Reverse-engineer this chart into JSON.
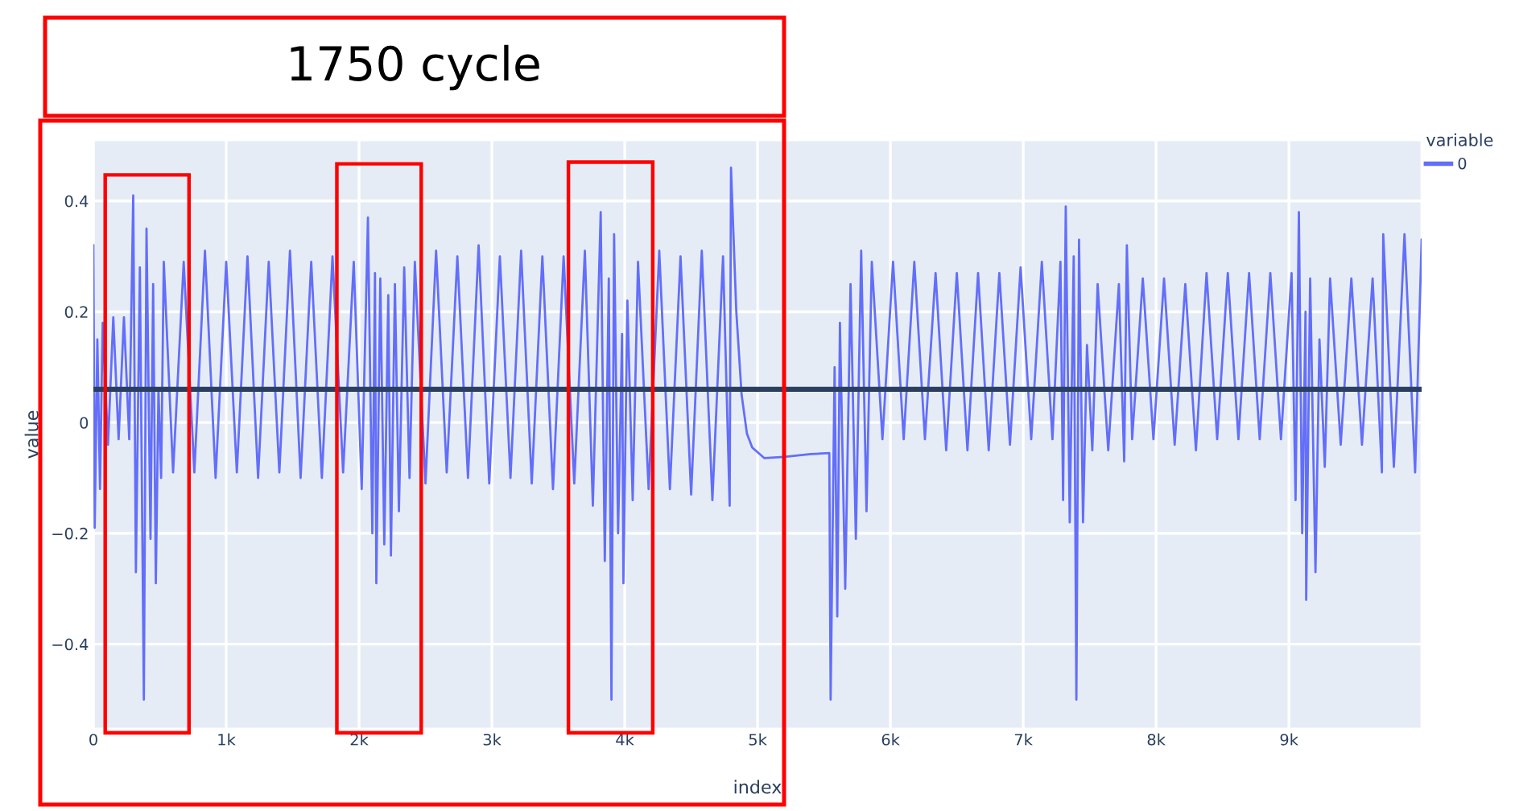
{
  "chart_data": {
    "type": "line",
    "xlabel": "index",
    "ylabel": "value",
    "legend_title": "variable",
    "legend": "top right",
    "grid": true,
    "annotations": [
      "1750 cycle"
    ],
    "xlim": [
      0,
      9999
    ],
    "ylim": [
      -0.553,
      0.51
    ],
    "xticks": [
      0,
      {
        "value": 1000,
        "label": "1k"
      },
      {
        "value": 2000,
        "label": "2k"
      },
      {
        "value": 3000,
        "label": "3k"
      },
      {
        "value": 4000,
        "label": "4k"
      },
      {
        "value": 5000,
        "label": "5k"
      },
      {
        "value": 6000,
        "label": "6k"
      },
      {
        "value": 7000,
        "label": "7k"
      },
      {
        "value": 8000,
        "label": "8k"
      },
      {
        "value": 9000,
        "label": "9k"
      }
    ],
    "yticks": [
      {
        "value": -0.4,
        "label": "−0.4"
      },
      {
        "value": -0.2,
        "label": "−0.2"
      },
      0,
      0.2,
      0.4
    ],
    "ref_lines": [
      {
        "axis": "y",
        "value": 0.06,
        "color": "#2a3f5f"
      }
    ],
    "series": [
      {
        "name": "0",
        "color": "#636efa",
        "x": [
          0,
          10,
          30,
          50,
          70,
          110,
          150,
          190,
          230,
          270,
          300,
          320,
          350,
          380,
          400,
          430,
          450,
          470,
          490,
          510,
          530,
          600,
          680,
          760,
          840,
          920,
          1000,
          1080,
          1160,
          1240,
          1320,
          1400,
          1480,
          1560,
          1640,
          1720,
          1800,
          1880,
          1960,
          2020,
          2067,
          2100,
          2120,
          2130,
          2160,
          2190,
          2220,
          2240,
          2270,
          2300,
          2340,
          2380,
          2420,
          2500,
          2580,
          2660,
          2740,
          2820,
          2900,
          2980,
          3060,
          3140,
          3220,
          3300,
          3380,
          3460,
          3540,
          3620,
          3700,
          3760,
          3819,
          3850,
          3880,
          3900,
          3920,
          3950,
          3980,
          3990,
          4020,
          4060,
          4100,
          4180,
          4260,
          4340,
          4420,
          4500,
          4580,
          4660,
          4740,
          4790,
          4800,
          4840,
          4880,
          4920,
          4960,
          5050,
          5200,
          5400,
          5540,
          5550,
          5580,
          5600,
          5620,
          5660,
          5700,
          5740,
          5780,
          5820,
          5860,
          5940,
          6020,
          6100,
          6180,
          6260,
          6340,
          6420,
          6500,
          6580,
          6660,
          6740,
          6820,
          6900,
          6980,
          7060,
          7140,
          7220,
          7280,
          7300,
          7320,
          7350,
          7380,
          7400,
          7420,
          7450,
          7480,
          7520,
          7560,
          7640,
          7720,
          7760,
          7780,
          7820,
          7900,
          7980,
          8060,
          8140,
          8220,
          8300,
          8380,
          8460,
          8540,
          8620,
          8700,
          8780,
          8860,
          8940,
          9020,
          9050,
          9075,
          9100,
          9125,
          9130,
          9160,
          9200,
          9230,
          9270,
          9310,
          9390,
          9470,
          9550,
          9630,
          9700,
          9710,
          9790,
          9870,
          9950,
          9999
        ],
        "values": [
          0.32,
          -0.19,
          0.15,
          -0.12,
          0.18,
          -0.04,
          0.19,
          -0.03,
          0.19,
          -0.03,
          0.41,
          -0.27,
          0.28,
          -0.5,
          0.35,
          -0.21,
          0.25,
          -0.29,
          0.06,
          -0.1,
          0.29,
          -0.09,
          0.29,
          -0.09,
          0.31,
          -0.1,
          0.29,
          -0.09,
          0.3,
          -0.1,
          0.29,
          -0.09,
          0.31,
          -0.1,
          0.29,
          -0.1,
          0.3,
          -0.09,
          0.29,
          -0.12,
          0.37,
          -0.2,
          0.27,
          -0.29,
          0.26,
          -0.22,
          0.23,
          -0.24,
          0.25,
          -0.16,
          0.28,
          -0.1,
          0.29,
          -0.11,
          0.31,
          -0.09,
          0.3,
          -0.1,
          0.32,
          -0.11,
          0.3,
          -0.1,
          0.31,
          -0.11,
          0.3,
          -0.12,
          0.3,
          -0.11,
          0.31,
          -0.15,
          0.38,
          -0.25,
          0.26,
          -0.5,
          0.34,
          -0.2,
          0.16,
          -0.29,
          0.22,
          -0.14,
          0.29,
          -0.12,
          0.31,
          -0.12,
          0.3,
          -0.13,
          0.31,
          -0.14,
          0.3,
          -0.15,
          0.46,
          0.2,
          0.05,
          -0.02,
          -0.045,
          -0.064,
          -0.062,
          -0.057,
          -0.055,
          -0.5,
          0.1,
          -0.35,
          0.18,
          -0.3,
          0.25,
          -0.21,
          0.31,
          -0.16,
          0.29,
          -0.03,
          0.29,
          -0.03,
          0.29,
          -0.03,
          0.27,
          -0.05,
          0.27,
          -0.05,
          0.27,
          -0.05,
          0.27,
          -0.04,
          0.28,
          -0.03,
          0.29,
          -0.03,
          0.29,
          -0.14,
          0.39,
          -0.18,
          0.3,
          -0.5,
          0.33,
          -0.18,
          0.14,
          -0.05,
          0.25,
          -0.05,
          0.25,
          -0.07,
          0.32,
          -0.03,
          0.26,
          -0.03,
          0.26,
          -0.04,
          0.25,
          -0.05,
          0.27,
          -0.03,
          0.27,
          -0.03,
          0.27,
          -0.03,
          0.27,
          -0.03,
          0.27,
          -0.14,
          0.38,
          -0.2,
          0.2,
          -0.32,
          0.26,
          -0.27,
          0.15,
          -0.08,
          0.26,
          -0.04,
          0.26,
          -0.04,
          0.26,
          -0.09,
          0.34,
          -0.08,
          0.34,
          -0.09,
          0.33
        ]
      }
    ]
  }
}
